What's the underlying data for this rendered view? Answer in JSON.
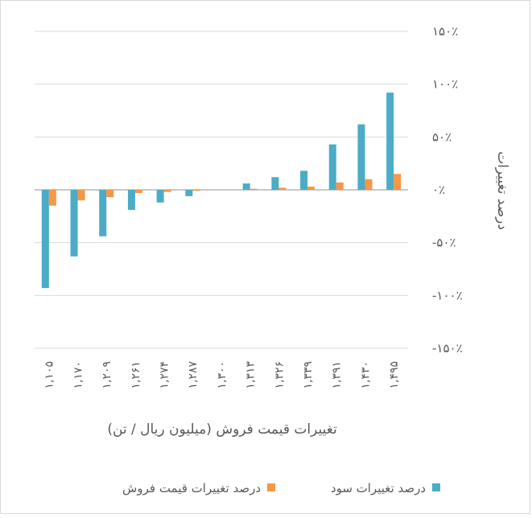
{
  "chart_data": {
    "type": "bar",
    "title": "",
    "xlabel": "تغییرات قیمت فروش (میلیون ریال / تن)",
    "ylabel": "درصد تغییرات",
    "categories": [
      "۱,۱۰۵",
      "۱,۱۷۰",
      "۱,۲۰۹",
      "۱,۲۶۱",
      "۱,۲۷۴",
      "۱,۲۸۷",
      "۱,۳۰۰",
      "۱,۳۱۳",
      "۱,۳۲۶",
      "۱,۳۳۹",
      "۱,۳۹۱",
      "۱,۴۳۰",
      "۱,۴۹۵"
    ],
    "y_ticks": [
      {
        "value": 150,
        "label": "۱۵۰٪"
      },
      {
        "value": 100,
        "label": "۱۰۰٪"
      },
      {
        "value": 50,
        "label": "۵۰٪"
      },
      {
        "value": 0,
        "label": "۰٪"
      },
      {
        "value": -50,
        "label": "-۵۰٪"
      },
      {
        "value": -100,
        "label": "-۱۰۰٪"
      },
      {
        "value": -150,
        "label": "-۱۵۰٪"
      }
    ],
    "ylim": [
      -150,
      150
    ],
    "grid": true,
    "legend_position": "bottom",
    "series": [
      {
        "name": "درصد تغییرات سود",
        "color": "#4bacc6",
        "values": [
          -93,
          -63,
          -44,
          -19,
          -12,
          -6,
          0,
          6,
          12,
          18,
          43,
          62,
          92
        ]
      },
      {
        "name": "درصد تغییرات قیمت فروش",
        "color": "#f79646",
        "values": [
          -15,
          -10,
          -7,
          -3,
          -2,
          -1,
          0,
          1,
          2,
          3,
          7,
          10,
          15
        ]
      }
    ]
  }
}
